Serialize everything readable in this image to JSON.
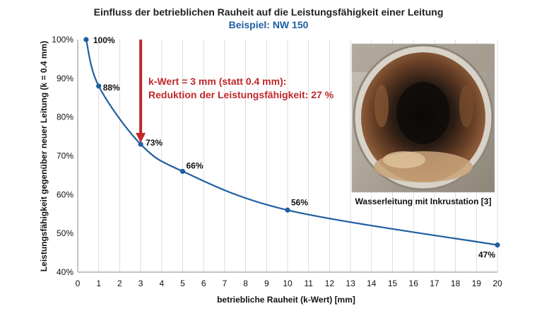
{
  "chart_data": {
    "type": "line",
    "title": "Einfluss der betrieblichen Rauheit auf die Leistungsfähigkeit einer Leitung",
    "subtitle": "Beispiel: NW 150",
    "xlabel": "betriebliche Rauheit (k-Wert) [mm]",
    "ylabel": "Leistungsfähigkeit gegenüber neuer Leitung (k = 0.4 mm)",
    "xlim": [
      0,
      20
    ],
    "ylim": [
      40,
      100
    ],
    "xticks": [
      0,
      1,
      2,
      3,
      4,
      5,
      6,
      7,
      8,
      9,
      10,
      11,
      12,
      13,
      14,
      15,
      16,
      17,
      18,
      19,
      20
    ],
    "yticks": [
      40,
      50,
      60,
      70,
      80,
      90,
      100
    ],
    "ytick_labels": [
      "40%",
      "50%",
      "60%",
      "70%",
      "80%",
      "90%",
      "100%"
    ],
    "grid": "vertical",
    "series": [
      {
        "name": "Leistungsfähigkeit",
        "x": [
          0.4,
          1,
          3,
          5,
          10,
          20
        ],
        "y": [
          100,
          88,
          73,
          66,
          56,
          47
        ],
        "labels": [
          "100%",
          "88%",
          "73%",
          "66%",
          "56%",
          "47%"
        ],
        "color": "#1F5FA0"
      }
    ],
    "annotation": {
      "lines": [
        "k-Wert = 3 mm (statt 0.4 mm):",
        "Reduktion der Leistungsfähigkeit: 27 %"
      ],
      "color": "#C0282A",
      "arrow_x": 3,
      "arrow_from_y": 100,
      "arrow_to_y": 73
    },
    "colors": {
      "title": "#222222",
      "subtitle": "#1F5FA0",
      "grid": "#D6D6D6"
    }
  },
  "photo": {
    "caption": "Wasserleitung mit Inkrustation [3]"
  }
}
